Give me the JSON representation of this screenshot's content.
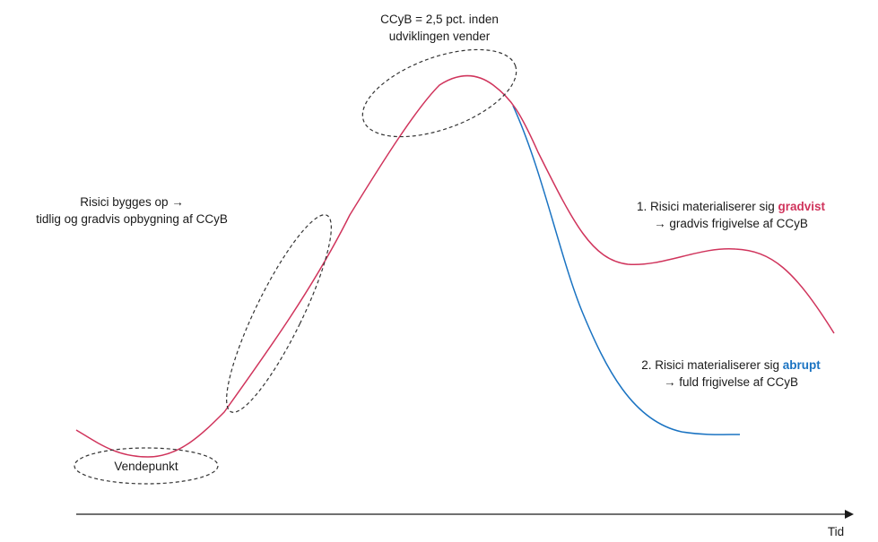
{
  "colors": {
    "main_curve": "#d0345c",
    "abrupt_curve": "#1a73c2",
    "axis": "#1a1a1a",
    "ellipse": "#333333"
  },
  "axis": {
    "x_label": "Tid"
  },
  "annotations": {
    "peak": {
      "line1": "CCyB = 2,5 pct. inden",
      "line2": "udviklingen vender"
    },
    "build_up": {
      "line1": "Risici bygges op →",
      "line2": "tidlig og gradvis opbygning af CCyB"
    },
    "gradual": {
      "line1_prefix": "1. Risici materialiserer sig ",
      "line1_highlight": "gradvist",
      "line2": "→ gradvis frigivelse af CCyB"
    },
    "abrupt": {
      "line1_prefix": "2. Risici materialiserer sig ",
      "line1_highlight": "abrupt",
      "line2": "→ fuld frigivelse af CCyB"
    },
    "turning_point": "Vendepunkt"
  }
}
